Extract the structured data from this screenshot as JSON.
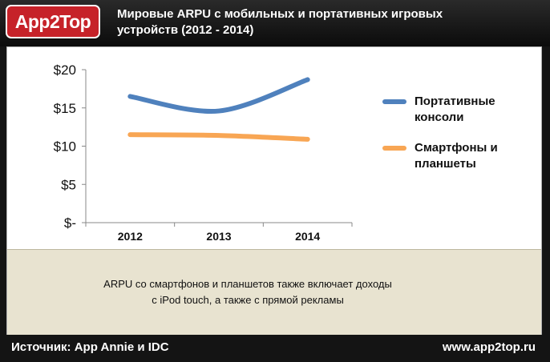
{
  "header": {
    "logo_text": "App2Top",
    "title_line1": "Мировые ARPU с мобильных и портативных игровых",
    "title_line2": "устройств (2012 - 2014)"
  },
  "note": {
    "line1": "ARPU со смартфонов и планшетов также включает доходы",
    "line2": "с iPod touch, а также с прямой рекламы"
  },
  "footer": {
    "source": "Источник: App Annie и IDC",
    "site": "www.app2top.ru"
  },
  "colors": {
    "series1": "#4f81bd",
    "series2": "#f8a654",
    "brand": "#c62229"
  },
  "chart_data": {
    "type": "line",
    "categories": [
      "2012",
      "2013",
      "2014"
    ],
    "y_tick_labels": [
      "$-",
      "$5",
      "$10",
      "$15",
      "$20"
    ],
    "y_ticks": [
      0,
      5,
      10,
      15,
      20
    ],
    "ylim": [
      0,
      20
    ],
    "grid": false,
    "legend_position": "right",
    "series": [
      {
        "name": "Портативные консоли",
        "name_line1": "Портативные",
        "name_line2": "консоли",
        "values": [
          16.5,
          14.6,
          18.7
        ],
        "color": "#4f81bd"
      },
      {
        "name": "Смартфоны и планшеты",
        "name_line1": "Смартфоны и",
        "name_line2": "планшеты",
        "values": [
          11.5,
          11.4,
          10.9
        ],
        "color": "#f8a654"
      }
    ]
  }
}
